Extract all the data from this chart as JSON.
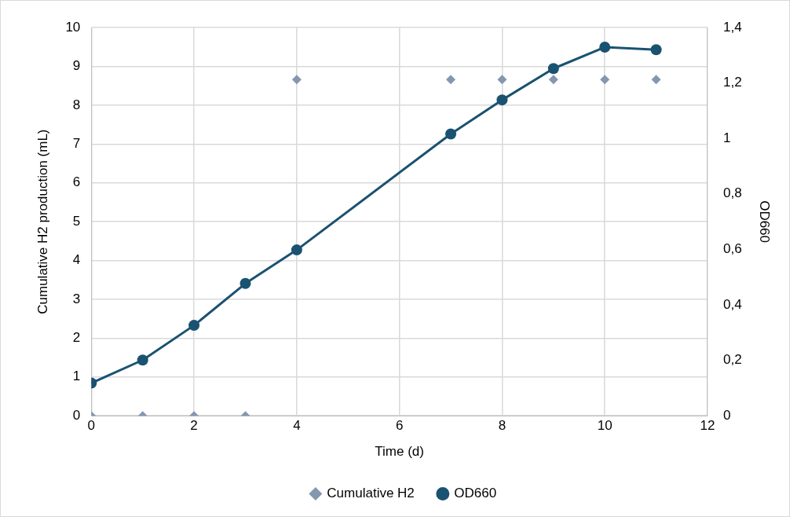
{
  "chart_data": {
    "type": "scatter",
    "xlabel": "Time (d)",
    "ylabel": "Cumulative H2 production (mL)",
    "y2label": "OD660",
    "x": [
      0,
      1,
      2,
      3,
      4,
      7,
      8,
      9,
      10,
      11
    ],
    "series": [
      {
        "name": "Cumulative H2",
        "type": "scatter",
        "color": "#8497b0",
        "marker": "diamond",
        "values": [
          0,
          0,
          0,
          0,
          8.66,
          8.66,
          8.66,
          8.66,
          8.66,
          8.66
        ]
      },
      {
        "name": "OD660",
        "type": "line",
        "axis": "y2",
        "color": "#1a5271",
        "marker": "circle",
        "line_style": "solid",
        "values": [
          0.118,
          0.201,
          0.326,
          0.477,
          0.598,
          1.016,
          1.139,
          1.252,
          1.329,
          1.32
        ]
      }
    ],
    "xlim": [
      0,
      12
    ],
    "xticks": [
      0,
      2,
      4,
      6,
      8,
      10,
      12
    ],
    "ylim": [
      0,
      10
    ],
    "yticks": [
      0,
      1,
      2,
      3,
      4,
      5,
      6,
      7,
      8,
      9,
      10
    ],
    "y2lim": [
      0,
      1.4
    ],
    "y2ticks": [
      0,
      {
        "value": 0.2,
        "label": "0,2"
      },
      {
        "value": 0.4,
        "label": "0,4"
      },
      {
        "value": 0.6,
        "label": "0,6"
      },
      {
        "value": 0.8,
        "label": "0,8"
      },
      1,
      {
        "value": 1.2,
        "label": "1,2"
      },
      {
        "value": 1.4,
        "label": "1,4"
      }
    ],
    "grid": true,
    "legend": "bottom"
  }
}
